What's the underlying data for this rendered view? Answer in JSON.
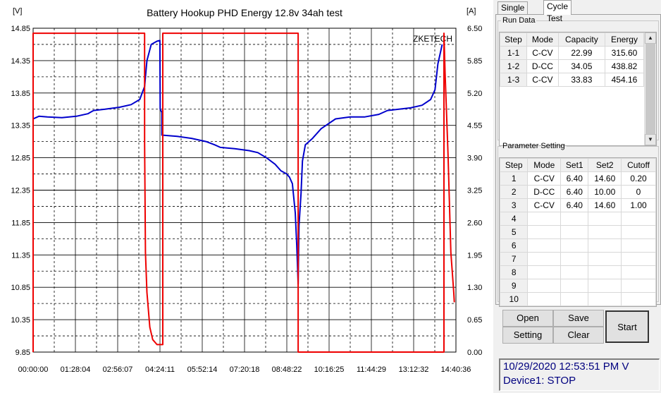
{
  "chart_data": {
    "type": "line",
    "title": "Battery Hookup PHD Energy 12.8v 34ah test",
    "watermark": "ZKETECH",
    "left_axis_label": "[V]",
    "right_axis_label": "[A]",
    "y_left_ticks": [
      "14.85",
      "14.35",
      "13.85",
      "13.35",
      "12.85",
      "12.35",
      "11.85",
      "11.35",
      "10.85",
      "10.35",
      "9.85"
    ],
    "y_right_ticks": [
      "6.50",
      "5.85",
      "5.20",
      "4.55",
      "3.90",
      "3.25",
      "2.60",
      "1.95",
      "1.30",
      "0.65",
      "0.00"
    ],
    "x_ticks": [
      "00:00:00",
      "01:28:04",
      "02:56:07",
      "04:24:11",
      "05:52:14",
      "07:20:18",
      "08:48:22",
      "10:16:25",
      "11:44:29",
      "13:12:32",
      "14:40:36"
    ],
    "ylim_left": [
      9.85,
      14.85
    ],
    "ylim_right": [
      0,
      6.5
    ],
    "xlim_hours": [
      0,
      14.677
    ],
    "grid": true,
    "series": [
      {
        "axis": "left",
        "color": "#0000cc",
        "points": [
          [
            0,
            13.45
          ],
          [
            0.2,
            13.49
          ],
          [
            0.5,
            13.48
          ],
          [
            1.0,
            13.47
          ],
          [
            1.5,
            13.49
          ],
          [
            1.9,
            13.53
          ],
          [
            2.1,
            13.58
          ],
          [
            2.5,
            13.6
          ],
          [
            3.0,
            13.63
          ],
          [
            3.4,
            13.67
          ],
          [
            3.7,
            13.75
          ],
          [
            3.87,
            13.95
          ],
          [
            3.95,
            14.35
          ],
          [
            4.1,
            14.6
          ],
          [
            4.3,
            14.65
          ],
          [
            4.4,
            14.66
          ],
          [
            4.41,
            13.6
          ],
          [
            4.47,
            13.55
          ],
          [
            4.47,
            13.2
          ],
          [
            5.0,
            13.18
          ],
          [
            5.5,
            13.15
          ],
          [
            6.0,
            13.1
          ],
          [
            6.3,
            13.05
          ],
          [
            6.5,
            13.01
          ],
          [
            7.0,
            12.99
          ],
          [
            7.5,
            12.96
          ],
          [
            7.8,
            12.93
          ],
          [
            8.1,
            12.85
          ],
          [
            8.4,
            12.75
          ],
          [
            8.6,
            12.65
          ],
          [
            8.8,
            12.6
          ],
          [
            8.9,
            12.55
          ],
          [
            9.0,
            12.45
          ],
          [
            9.1,
            12.0
          ],
          [
            9.15,
            11.5
          ],
          [
            9.2,
            10.9
          ],
          [
            9.23,
            11.8
          ],
          [
            9.3,
            12.3
          ],
          [
            9.35,
            12.8
          ],
          [
            9.45,
            13.05
          ],
          [
            9.7,
            13.15
          ],
          [
            10.0,
            13.3
          ],
          [
            10.5,
            13.45
          ],
          [
            11.0,
            13.48
          ],
          [
            11.5,
            13.48
          ],
          [
            12.0,
            13.52
          ],
          [
            12.3,
            13.58
          ],
          [
            12.7,
            13.6
          ],
          [
            13.1,
            13.62
          ],
          [
            13.5,
            13.66
          ],
          [
            13.8,
            13.75
          ],
          [
            13.95,
            13.9
          ],
          [
            14.05,
            14.3
          ],
          [
            14.15,
            14.5
          ],
          [
            14.2,
            14.6
          ]
        ]
      },
      {
        "axis": "right",
        "color": "#ee0000",
        "points": [
          [
            0,
            0
          ],
          [
            0,
            6.4
          ],
          [
            3.87,
            6.4
          ],
          [
            3.87,
            4.2
          ],
          [
            3.9,
            2.0
          ],
          [
            3.95,
            1.2
          ],
          [
            4.05,
            0.5
          ],
          [
            4.15,
            0.25
          ],
          [
            4.3,
            0.15
          ],
          [
            4.5,
            0.15
          ],
          [
            4.5,
            6.4
          ],
          [
            9.2,
            6.4
          ],
          [
            9.2,
            0
          ],
          [
            14.26,
            0
          ],
          [
            14.26,
            6.4
          ],
          [
            14.3,
            5.6
          ],
          [
            14.4,
            4.0
          ],
          [
            14.5,
            2.0
          ],
          [
            14.6,
            1.2
          ],
          [
            14.62,
            1.0
          ]
        ]
      }
    ]
  },
  "tabs": {
    "single": "Single Test",
    "cycle": "Cycle Test"
  },
  "run_data": {
    "title": "Run Data",
    "columns": [
      "Step",
      "Mode",
      "Capacity",
      "Energy"
    ],
    "rows": [
      [
        "1-1",
        "C-CV",
        "22.99",
        "315.60"
      ],
      [
        "1-2",
        "D-CC",
        "34.05",
        "438.82"
      ],
      [
        "1-3",
        "C-CV",
        "33.83",
        "454.16"
      ]
    ]
  },
  "parameter_setting": {
    "title": "Parameter Setting",
    "columns": [
      "Step",
      "Mode",
      "Set1",
      "Set2",
      "Cutoff"
    ],
    "rows": [
      [
        "1",
        "C-CV",
        "6.40",
        "14.60",
        "0.20"
      ],
      [
        "2",
        "D-CC",
        "6.40",
        "10.00",
        "0"
      ],
      [
        "3",
        "C-CV",
        "6.40",
        "14.60",
        "1.00"
      ],
      [
        "4",
        "",
        "",
        "",
        ""
      ],
      [
        "5",
        "",
        "",
        "",
        ""
      ],
      [
        "6",
        "",
        "",
        "",
        ""
      ],
      [
        "7",
        "",
        "",
        "",
        ""
      ],
      [
        "8",
        "",
        "",
        "",
        ""
      ],
      [
        "9",
        "",
        "",
        "",
        ""
      ],
      [
        "10",
        "",
        "",
        "",
        ""
      ]
    ]
  },
  "buttons": {
    "open": "Open",
    "save": "Save",
    "setting": "Setting",
    "clear": "Clear",
    "start": "Start"
  },
  "status": {
    "datetime": "10/29/2020 12:53:51 PM  V",
    "device": "Device1: STOP"
  }
}
